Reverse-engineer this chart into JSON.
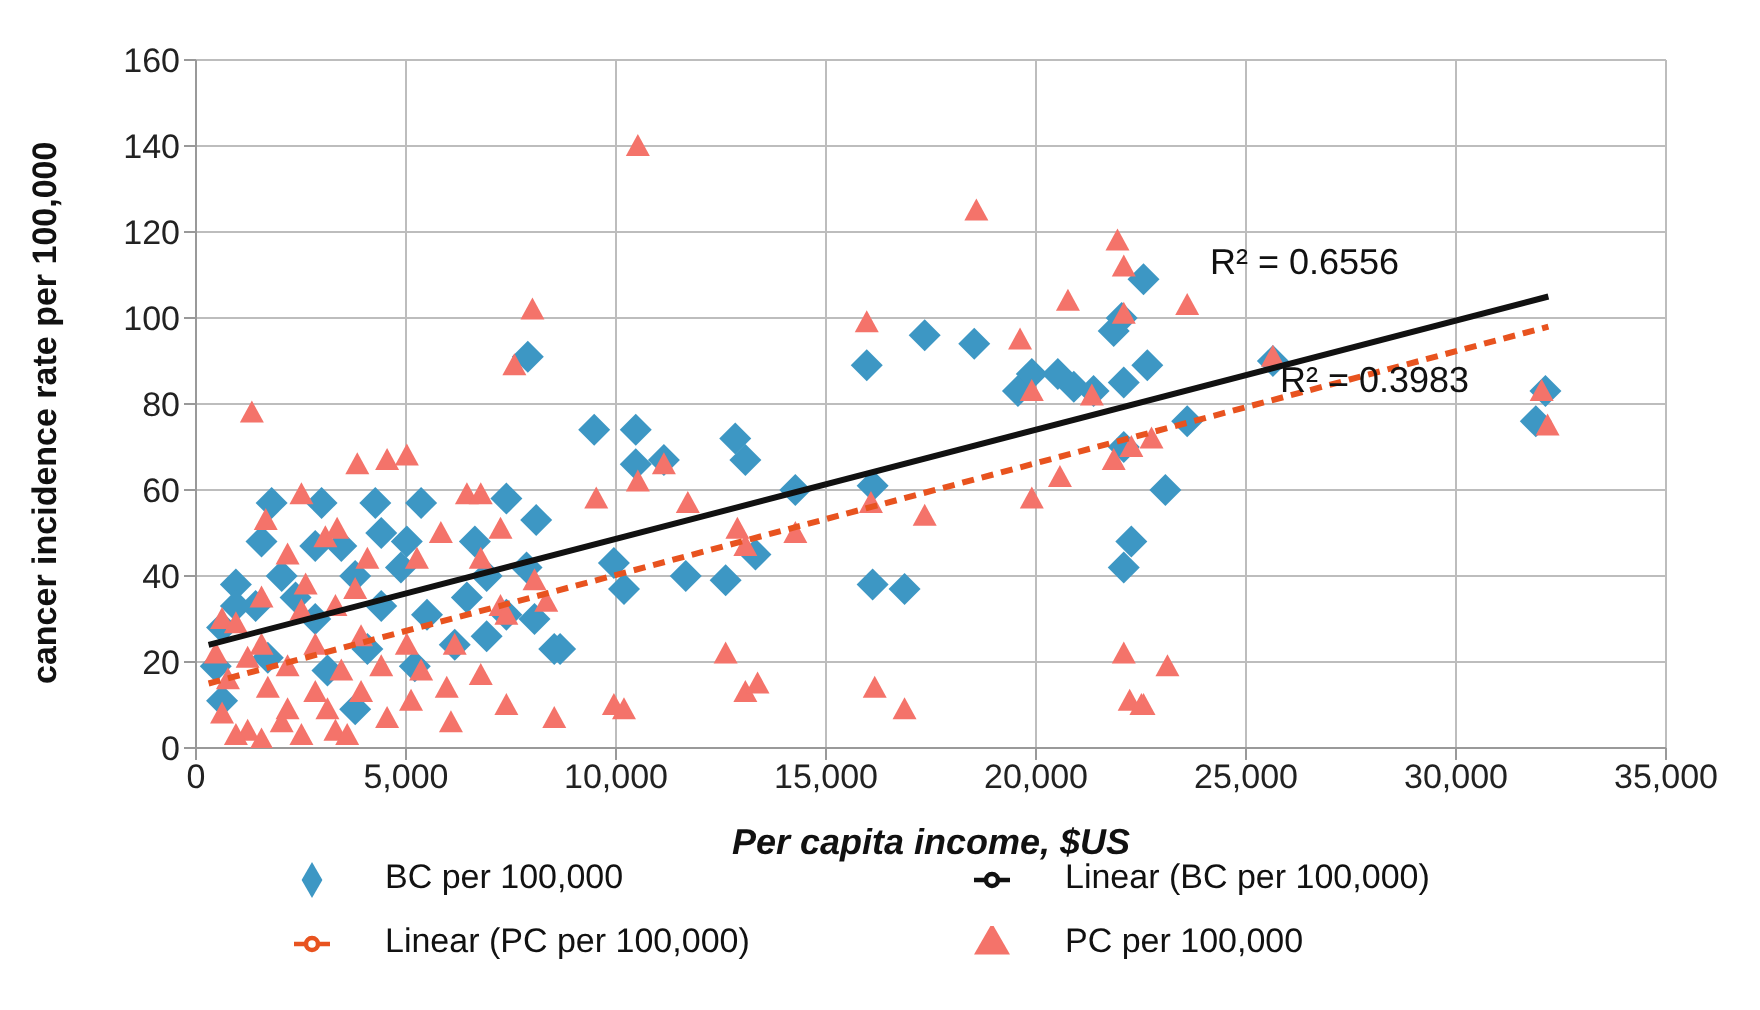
{
  "chart_data": {
    "type": "scatter",
    "xlabel": "Per capita income, $US",
    "ylabel": "cancer incidence rate per 100,000",
    "xlim": [
      0,
      35000
    ],
    "xticks": [
      {
        "value": 0,
        "label": "0"
      },
      {
        "value": 5000,
        "label": "5,000"
      },
      {
        "value": 10000,
        "label": "10,000"
      },
      {
        "value": 15000,
        "label": "15,000"
      },
      {
        "value": 20000,
        "label": "20,000"
      },
      {
        "value": 25000,
        "label": "25,000"
      },
      {
        "value": 30000,
        "label": "30,000"
      },
      {
        "value": 35000,
        "label": "35,000"
      }
    ],
    "ylim": [
      0,
      160
    ],
    "yticks": [
      0,
      20,
      40,
      60,
      80,
      100,
      120,
      140,
      160
    ],
    "grid": true,
    "legend": "bottom",
    "annotations": [
      "R² = 0.6556",
      "R² = 0.3983"
    ],
    "series": [
      {
        "name": "BC per 100,000",
        "type": "scatter",
        "marker": "diamond",
        "color": "#3d97c4",
        "x": [
          9480,
          10470,
          10470,
          11140,
          12840,
          13080,
          14270,
          9950,
          10190,
          11660,
          12610,
          13320,
          15970,
          16110,
          16110,
          16870,
          17350,
          18530,
          19570,
          19900,
          20520,
          20900,
          21370,
          21850,
          22040,
          22560,
          22090,
          22650,
          22090,
          22270,
          22090,
          8670,
          23600,
          23080,
          25640,
          32130,
          31900,
          1800,
          2990,
          4270,
          5360,
          7390,
          8100,
          1560,
          2840,
          3460,
          4410,
          5020,
          6640,
          950,
          2040,
          3790,
          4880,
          6920,
          7870,
          620,
          1420,
          2840,
          4410,
          5500,
          6450,
          7390,
          470,
          1710,
          3130,
          4080,
          5210,
          6160,
          6920,
          8530,
          8060,
          620,
          3790,
          950,
          2370,
          7900
        ],
        "values": [
          74,
          74,
          66,
          67,
          72,
          67,
          60,
          43,
          37,
          40,
          39,
          45,
          89,
          61,
          38,
          37,
          96,
          94,
          83,
          87,
          87,
          84,
          83,
          97,
          100,
          109,
          85,
          89,
          70,
          48,
          42,
          23,
          76,
          60,
          90,
          83,
          76,
          57,
          57,
          57,
          57,
          58,
          53,
          48,
          47,
          47,
          50,
          48,
          48,
          38,
          40,
          40,
          42,
          40,
          42,
          28,
          33,
          30,
          33,
          31,
          35,
          31,
          19,
          21,
          18,
          23,
          19,
          24,
          26,
          23,
          30,
          11,
          9,
          33,
          35,
          91
        ]
      },
      {
        "name": "PC per 100,000",
        "type": "scatter",
        "marker": "triangle",
        "color": "#f4736a",
        "x": [
          10520,
          18580,
          15970,
          19620,
          20760,
          21940,
          22090,
          22090,
          19900,
          21330,
          9530,
          10520,
          11140,
          11710,
          12890,
          13080,
          14270,
          16070,
          17350,
          19900,
          20570,
          21850,
          22270,
          22750,
          12610,
          13080,
          13370,
          9950,
          10190,
          16160,
          16870,
          22090,
          22230,
          22560,
          23600,
          25640,
          32040,
          32180,
          23130,
          22510,
          1330,
          3840,
          4550,
          5020,
          6450,
          6780,
          7580,
          8010,
          2510,
          1660,
          3080,
          3360,
          5830,
          7250,
          2180,
          4080,
          5260,
          6780,
          2610,
          3790,
          8060,
          1560,
          2510,
          620,
          950,
          3320,
          7250,
          8340,
          1560,
          2840,
          3930,
          5020,
          6160,
          7390,
          470,
          1230,
          2180,
          3460,
          4410,
          5360,
          6780,
          760,
          1710,
          2840,
          3930,
          5120,
          5970,
          7390,
          8530,
          4550,
          6070,
          620,
          1230,
          2040,
          2510,
          3320,
          3600,
          950,
          1560,
          2180,
          3130
        ],
        "values": [
          140,
          125,
          99,
          95,
          104,
          118,
          112,
          101,
          83,
          82,
          58,
          62,
          66,
          57,
          51,
          47,
          50,
          57,
          54,
          58,
          63,
          67,
          70,
          72,
          22,
          13,
          15,
          10,
          9,
          14,
          9,
          22,
          11,
          10,
          103,
          91,
          83,
          75,
          19,
          10,
          78,
          66,
          67,
          68,
          59,
          59,
          89,
          102,
          59,
          53,
          49,
          51,
          50,
          51,
          45,
          44,
          44,
          44,
          38,
          37,
          39,
          35,
          32,
          30,
          29,
          33,
          33,
          34,
          24,
          24,
          26,
          24,
          24,
          31,
          22,
          21,
          19,
          18,
          19,
          18,
          17,
          16,
          14,
          13,
          13,
          11,
          14,
          10,
          7,
          7,
          6,
          8,
          4,
          6,
          3,
          4,
          3,
          3,
          2,
          9,
          9
        ]
      },
      {
        "name": "Linear (BC per 100,000)",
        "type": "line",
        "marker": "none",
        "line_style": "solid",
        "color": "#111111",
        "x": [
          300,
          32200
        ],
        "values": [
          24,
          105
        ]
      },
      {
        "name": "Linear (PC per 100,000)",
        "type": "line",
        "marker": "none",
        "line_style": "dashed",
        "color": "#e8531f",
        "x": [
          300,
          32200
        ],
        "values": [
          15,
          98
        ]
      }
    ]
  }
}
